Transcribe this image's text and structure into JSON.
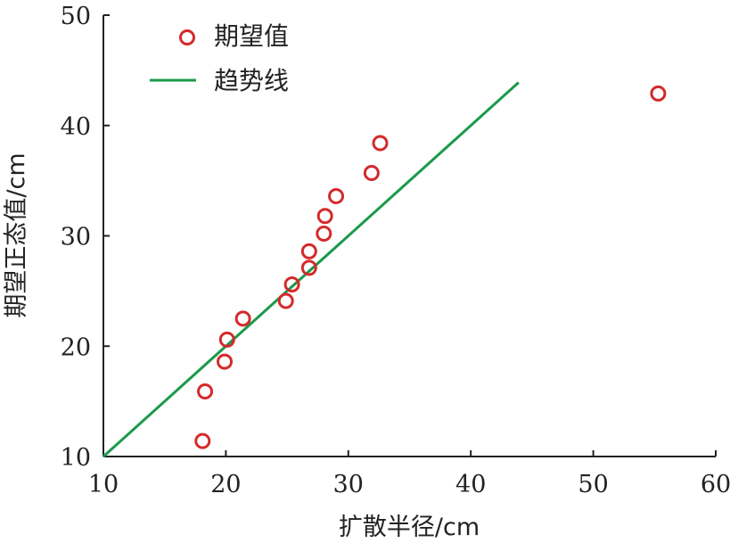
{
  "chart_data": {
    "type": "scatter",
    "xlabel": "扩散半径/cm",
    "ylabel": "期望正态值/cm",
    "xlim": [
      10,
      60
    ],
    "ylim": [
      10,
      50
    ],
    "xticks": [
      10,
      20,
      30,
      40,
      50,
      60
    ],
    "yticks": [
      10,
      20,
      30,
      40,
      50
    ],
    "grid": false,
    "legend_position": "top-left",
    "series": [
      {
        "name": "期望值",
        "kind": "scatter",
        "marker": "open-circle",
        "color": "#d42a2a",
        "points": [
          {
            "x": 18.1,
            "y": 11.4
          },
          {
            "x": 18.3,
            "y": 15.9
          },
          {
            "x": 19.9,
            "y": 18.6
          },
          {
            "x": 20.1,
            "y": 20.6
          },
          {
            "x": 21.4,
            "y": 22.5
          },
          {
            "x": 24.9,
            "y": 24.1
          },
          {
            "x": 25.4,
            "y": 25.6
          },
          {
            "x": 26.8,
            "y": 27.1
          },
          {
            "x": 26.8,
            "y": 28.6
          },
          {
            "x": 28.0,
            "y": 30.2
          },
          {
            "x": 28.1,
            "y": 31.8
          },
          {
            "x": 29.0,
            "y": 33.6
          },
          {
            "x": 31.9,
            "y": 35.7
          },
          {
            "x": 32.6,
            "y": 38.4
          },
          {
            "x": 55.3,
            "y": 42.9
          }
        ]
      },
      {
        "name": "趋势线",
        "kind": "line",
        "color": "#1a9a4a",
        "points": [
          {
            "x": 10.0,
            "y": 10.0
          },
          {
            "x": 43.9,
            "y": 43.9
          }
        ]
      }
    ]
  }
}
